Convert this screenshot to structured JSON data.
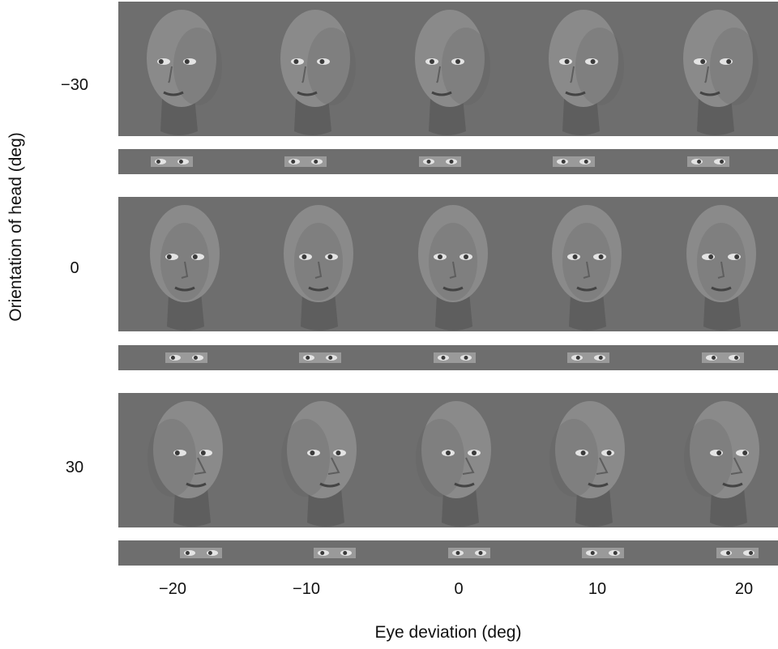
{
  "figure": {
    "y_axis_title": "Orientation of head (deg)",
    "x_axis_title": "Eye deviation (deg)",
    "head_orientations": [
      "−30",
      "0",
      "30"
    ],
    "eye_deviations": [
      "−20",
      "−10",
      "0",
      "10",
      "20"
    ],
    "colors": {
      "background_panel": "#6e6e6e",
      "face": "#8a8a8a",
      "face_shadow": "#5e5e5e",
      "eye_white": "#e4e4e4",
      "iris": "#3a3a3a"
    }
  }
}
